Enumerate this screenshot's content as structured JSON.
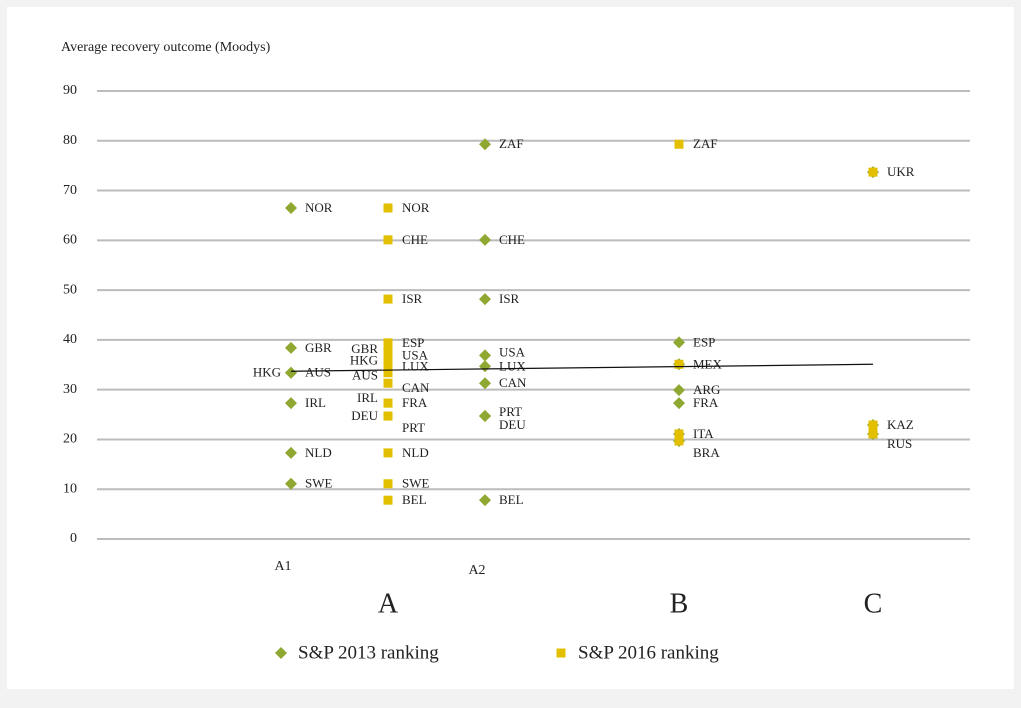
{
  "chart_data": {
    "type": "scatter",
    "y_label": "Average recovery outcome (Moodys)",
    "xlim": [
      0,
      4.5
    ],
    "ylim": [
      0,
      90
    ],
    "yticks": [
      0,
      10,
      20,
      30,
      40,
      50,
      60,
      70,
      80,
      90
    ],
    "xticks": [
      {
        "value": 1,
        "label": "A1"
      },
      {
        "value": 2,
        "label": "A2"
      }
    ],
    "group_labels": [
      {
        "value": 1.5,
        "label": "A"
      },
      {
        "value": 3,
        "label": "B"
      },
      {
        "value": 4,
        "label": "C"
      }
    ],
    "grid": true,
    "legend": "bottom",
    "series": [
      {
        "name": "S&P 2013 ranking",
        "color": "#8ea832",
        "marker": "diamond",
        "x": [
          1,
          1,
          1,
          1,
          1,
          1,
          1,
          2,
          2,
          2,
          2,
          2,
          2,
          2,
          2,
          2,
          3,
          3,
          3,
          3,
          3,
          3,
          4,
          4,
          4
        ],
        "values": [
          66.5,
          38.4,
          33.4,
          33.4,
          27.3,
          17.3,
          11.1,
          79.3,
          60.1,
          48.2,
          36.9,
          34.7,
          31.3,
          24.7,
          24.7,
          7.8,
          39.5,
          35.1,
          29.9,
          27.3,
          21.1,
          19.7,
          73.7,
          22.9,
          21.1
        ],
        "labels": [
          "NOR",
          "GBR",
          "HKG",
          "AUS",
          "IRL",
          "NLD",
          "SWE",
          "ZAF",
          "CHE",
          "ISR",
          "USA",
          "LUX",
          "CAN",
          "PRT",
          "DEU",
          "BEL",
          "ESP",
          "MEX",
          "ARG",
          "FRA",
          "ITA",
          "BRA",
          "UKR",
          "KAZ",
          "RUS"
        ]
      },
      {
        "name": "S&P 2016 ranking",
        "color": "#e2c000",
        "marker": "square",
        "x": [
          1.5,
          1.5,
          1.5,
          1.5,
          1.5,
          1.5,
          1.5,
          1.5,
          1.5,
          1.5,
          1.5,
          1.5,
          1.5,
          1.5,
          1.5,
          1.5,
          1.5,
          3,
          3,
          3,
          3,
          4,
          4,
          4
        ],
        "values": [
          66.5,
          60.1,
          48.2,
          39.4,
          38.2,
          36.9,
          35.9,
          34.7,
          33.4,
          31.3,
          27.3,
          27.3,
          24.7,
          24.7,
          17.3,
          11.1,
          7.8,
          79.3,
          35.1,
          21.1,
          19.7,
          73.7,
          22.9,
          21.1
        ],
        "labels": [
          "NOR",
          "CHE",
          "ISR",
          "ESP",
          "GBR",
          "USA",
          "HKG",
          "LUX",
          "AUS",
          "CAN",
          "IRL",
          "FRA",
          "DEU",
          "PRT",
          "NLD",
          "SWE",
          "BEL",
          "ZAF",
          null,
          null,
          null,
          null,
          null,
          null
        ]
      }
    ],
    "trendline": {
      "x": [
        1,
        4
      ],
      "values": [
        33.7,
        35.1
      ]
    }
  }
}
